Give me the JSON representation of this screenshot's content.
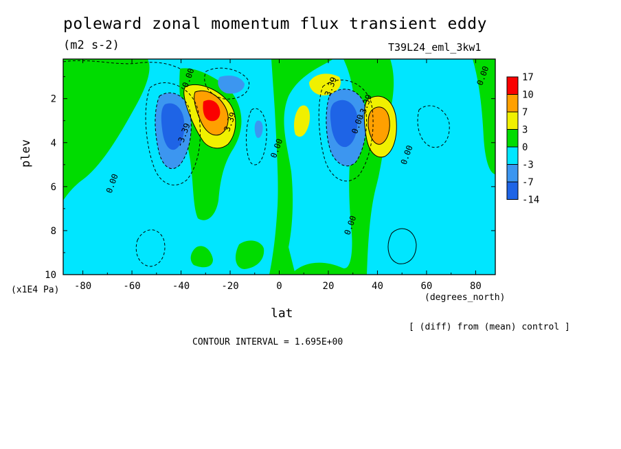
{
  "title": "poleward zonal momentum flux transient eddy",
  "units": "(m2 s-2)",
  "run_id": "T39L24_eml_3kw1",
  "diff_note": "[ (diff) from (mean) control ]",
  "contour_interval": "CONTOUR INTERVAL = 1.695E+00",
  "colors": {
    "background": "#ffffff",
    "c_neg14": "#1e64e6",
    "c_neg7": "#3c96f0",
    "c_neg3": "#00e6ff",
    "c_0": "#00dc00",
    "c_3": "#f0f000",
    "c_7": "#ffa000",
    "c_10": "#fa0000"
  },
  "chart_data": {
    "type": "heatmap",
    "title": "poleward zonal momentum flux transient eddy",
    "xlabel": "lat",
    "ylabel": "plev",
    "x_unit": "(degrees_north)",
    "y_unit": "(x1E4 Pa)",
    "xlim": [
      -88,
      88
    ],
    "ylim": [
      10,
      0.2
    ],
    "y_inverted": true,
    "x_ticks": [
      -80,
      -60,
      -40,
      -20,
      0,
      20,
      40,
      60,
      80
    ],
    "y_ticks": [
      2,
      4,
      6,
      8,
      10
    ],
    "colorbar_levels": [
      "17",
      "10",
      "7",
      "3",
      "0",
      "-3",
      "-7",
      "-14"
    ],
    "contour_interval": 1.695,
    "contour_labels": [
      {
        "text": "0.00",
        "x": -67,
        "y": 5.9
      },
      {
        "text": "0.00",
        "x": -36,
        "y": 1.1
      },
      {
        "text": "-3.39",
        "x": -38,
        "y": 3.7
      },
      {
        "text": "3.39",
        "x": -19,
        "y": 3.1
      },
      {
        "text": "0.00",
        "x": 0,
        "y": 4.3
      },
      {
        "text": "0.00",
        "x": 30,
        "y": 7.8
      },
      {
        "text": "3.39",
        "x": 22,
        "y": 1.5
      },
      {
        "text": "0.00",
        "x": 33,
        "y": 3.2
      },
      {
        "text": "-3.39",
        "x": 36,
        "y": 2.4
      },
      {
        "text": "0.00",
        "x": 53,
        "y": 4.6
      },
      {
        "text": "0.00",
        "x": 84,
        "y": 1.0
      }
    ],
    "features": [
      {
        "name": "sh-positive-max",
        "sign": "positive",
        "lat": -28,
        "plev": 2.4,
        "peak": 17
      },
      {
        "name": "sh-negative-min",
        "sign": "negative",
        "lat": -44,
        "plev": 3.0,
        "peak": -14
      },
      {
        "name": "sh-negative-upper",
        "sign": "negative",
        "lat": -19,
        "plev": 1.2,
        "peak": -10
      },
      {
        "name": "nh-negative-min",
        "sign": "negative",
        "lat": 30,
        "plev": 3.0,
        "peak": -14
      },
      {
        "name": "nh-positive-max",
        "sign": "positive",
        "lat": 41,
        "plev": 3.0,
        "peak": 12
      },
      {
        "name": "nh-positive-upper",
        "sign": "positive",
        "lat": 20,
        "plev": 1.4,
        "peak": 6
      }
    ],
    "legend_position": "right"
  }
}
